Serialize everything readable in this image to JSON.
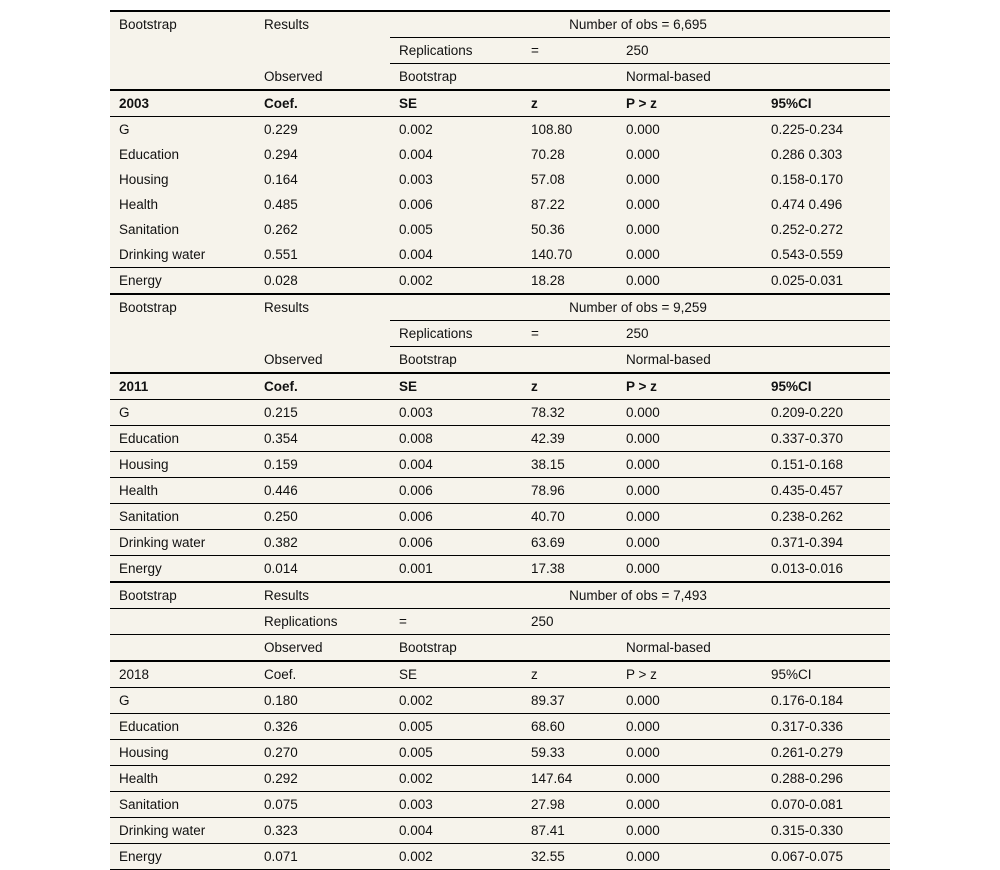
{
  "colors": {
    "table_background": "#f6f3eb",
    "rule_color": "#000000",
    "text_color": "#111111"
  },
  "panels": [
    {
      "bootstrap_label": "Bootstrap",
      "results_label": "Results",
      "obs_label": "Number of obs = 6,695",
      "replications_label": "Replications",
      "equals_sign": "=",
      "replications_value": "250",
      "observed_label": "Observed",
      "bootstrap_se_label": "Bootstrap",
      "normal_based_label": "Normal-based",
      "year": "2003",
      "headers": [
        "Coef.",
        "SE",
        "z",
        "P > z",
        "95%CI"
      ],
      "rows": [
        {
          "name": "G",
          "coef": "0.229",
          "se": "0.002",
          "z": "108.80",
          "p": "0.000",
          "ci": "0.225-0.234"
        },
        {
          "name": "Education",
          "coef": "0.294",
          "se": "0.004",
          "z": "70.28",
          "p": "0.000",
          "ci": "0.286 0.303"
        },
        {
          "name": "Housing",
          "coef": "0.164",
          "se": "0.003",
          "z": "57.08",
          "p": "0.000",
          "ci": "0.158-0.170"
        },
        {
          "name": "Health",
          "coef": "0.485",
          "se": "0.006",
          "z": "87.22",
          "p": "0.000",
          "ci": "0.474 0.496"
        },
        {
          "name": "Sanitation",
          "coef": "0.262",
          "se": "0.005",
          "z": "50.36",
          "p": "0.000",
          "ci": "0.252-0.272"
        },
        {
          "name": "Drinking water",
          "coef": "0.551",
          "se": "0.004",
          "z": "140.70",
          "p": "0.000",
          "ci": "0.543-0.559"
        },
        {
          "name": "Energy",
          "coef": "0.028",
          "se": "0.002",
          "z": "18.28",
          "p": "0.000",
          "ci": "0.025-0.031"
        }
      ]
    },
    {
      "bootstrap_label": "Bootstrap",
      "results_label": "Results",
      "obs_label": "Number of obs = 9,259",
      "replications_label": "Replications",
      "equals_sign": "=",
      "replications_value": "250",
      "observed_label": "Observed",
      "bootstrap_se_label": "Bootstrap",
      "normal_based_label": "Normal-based",
      "year": "2011",
      "headers": [
        "Coef.",
        "SE",
        "z",
        "P > z",
        "95%CI"
      ],
      "rows": [
        {
          "name": "G",
          "coef": "0.215",
          "se": "0.003",
          "z": "78.32",
          "p": "0.000",
          "ci": "0.209-0.220"
        },
        {
          "name": "Education",
          "coef": "0.354",
          "se": "0.008",
          "z": "42.39",
          "p": "0.000",
          "ci": "0.337-0.370"
        },
        {
          "name": "Housing",
          "coef": "0.159",
          "se": "0.004",
          "z": "38.15",
          "p": "0.000",
          "ci": "0.151-0.168"
        },
        {
          "name": "Health",
          "coef": "0.446",
          "se": "0.006",
          "z": "78.96",
          "p": "0.000",
          "ci": "0.435-0.457"
        },
        {
          "name": "Sanitation",
          "coef": "0.250",
          "se": "0.006",
          "z": "40.70",
          "p": "0.000",
          "ci": "0.238-0.262"
        },
        {
          "name": "Drinking water",
          "coef": "0.382",
          "se": "0.006",
          "z": "63.69",
          "p": "0.000",
          "ci": "0.371-0.394"
        },
        {
          "name": "Energy",
          "coef": "0.014",
          "se": "0.001",
          "z": "17.38",
          "p": "0.000",
          "ci": "0.013-0.016"
        }
      ]
    },
    {
      "bootstrap_label": "Bootstrap",
      "results_label": "Results",
      "obs_label": "Number of obs = 7,493",
      "replications_label": "Replications",
      "equals_sign": "=",
      "replications_value": "250",
      "observed_label": "Observed",
      "bootstrap_se_label": "Bootstrap",
      "normal_based_label": "Normal-based",
      "year": "2018",
      "headers": [
        "Coef.",
        "SE",
        "z",
        "P > z",
        "95%CI"
      ],
      "rows": [
        {
          "name": "G",
          "coef": "0.180",
          "se": "0.002",
          "z": "89.37",
          "p": "0.000",
          "ci": "0.176-0.184"
        },
        {
          "name": "Education",
          "coef": "0.326",
          "se": "0.005",
          "z": "68.60",
          "p": "0.000",
          "ci": "0.317-0.336"
        },
        {
          "name": "Housing",
          "coef": "0.270",
          "se": "0.005",
          "z": "59.33",
          "p": "0.000",
          "ci": "0.261-0.279"
        },
        {
          "name": "Health",
          "coef": "0.292",
          "se": "0.002",
          "z": "147.64",
          "p": "0.000",
          "ci": "0.288-0.296"
        },
        {
          "name": "Sanitation",
          "coef": "0.075",
          "se": "0.003",
          "z": "27.98",
          "p": "0.000",
          "ci": "0.070-0.081"
        },
        {
          "name": "Drinking water",
          "coef": "0.323",
          "se": "0.004",
          "z": "87.41",
          "p": "0.000",
          "ci": "0.315-0.330"
        },
        {
          "name": "Energy",
          "coef": "0.071",
          "se": "0.002",
          "z": "32.55",
          "p": "0.000",
          "ci": "0.067-0.075"
        }
      ]
    }
  ]
}
